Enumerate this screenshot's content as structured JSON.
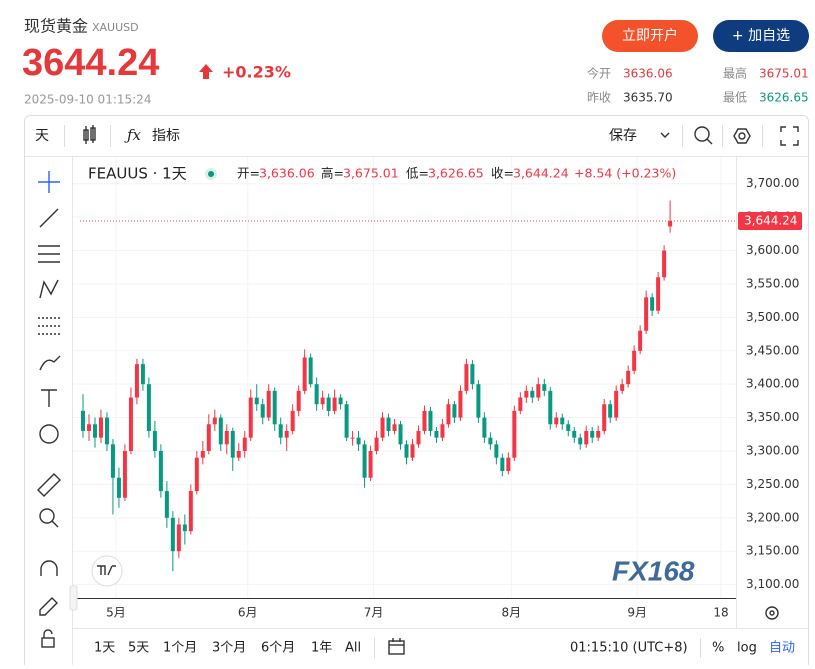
{
  "header": {
    "title": "现货黄金",
    "symbol": "XAUUSD",
    "price": "3644.24",
    "change": "+0.23%",
    "time": "2025-09-10 01:15:24",
    "buttons": [
      "立即开户",
      "+ 加自选"
    ],
    "stats": [
      [
        "今开",
        "3636.06"
      ],
      [
        "最高",
        "3675.01"
      ],
      [
        "昨收",
        "3635.70"
      ],
      [
        "最低",
        "3626.65"
      ]
    ]
  },
  "toolbar": {
    "interval": "天",
    "indicators": "指标",
    "save": "保存"
  },
  "bottom_bar": {
    "ranges": [
      "1天",
      "5天",
      "1个月",
      "3个月",
      "6个月",
      "1年",
      "All"
    ],
    "clock": "01:15:10 (UTC+8)",
    "percent": "%",
    "log": "log",
    "auto": "自动"
  },
  "chart_data": {
    "type": "candlestick",
    "legend_symbol": "FEAUUS · 1天",
    "legend": [
      [
        "开=",
        "3,636.06"
      ],
      [
        "高=",
        "3,675.01"
      ],
      [
        "低=",
        "3,626.65"
      ],
      [
        "收=",
        "3,644.24"
      ]
    ],
    "legend_change": "+8.54 (+0.23%)",
    "watermark": "FX168",
    "up_color": "#f23645",
    "down_color": "#089981",
    "ylim": [
      3080,
      3740
    ],
    "yticks": [
      {
        "value": 3100,
        "label": "3,100.00"
      },
      {
        "value": 3150,
        "label": "3,150.00"
      },
      {
        "value": 3200,
        "label": "3,200.00"
      },
      {
        "value": 3250,
        "label": "3,250.00"
      },
      {
        "value": 3300,
        "label": "3,300.00"
      },
      {
        "value": 3350,
        "label": "3,350.00"
      },
      {
        "value": 3400,
        "label": "3,400.00"
      },
      {
        "value": 3450,
        "label": "3,450.00"
      },
      {
        "value": 3500,
        "label": "3,500.00"
      },
      {
        "value": 3550,
        "label": "3,550.00"
      },
      {
        "value": 3600,
        "label": "3,600.00"
      },
      {
        "value": 3650,
        "label": "3,650.00"
      },
      {
        "value": 3700,
        "label": "3,700.00"
      }
    ],
    "last_price": {
      "value": 3644.24,
      "label": "3,644.24"
    },
    "xlim": [
      -0.5,
      109
    ],
    "xticks": [
      {
        "value": 5.5,
        "label": "5月"
      },
      {
        "value": 27.5,
        "label": "6月"
      },
      {
        "value": 48.5,
        "label": "7月"
      },
      {
        "value": 71.5,
        "label": "8月"
      },
      {
        "value": 92.5,
        "label": "9月"
      },
      {
        "value": 106.5,
        "label": "18"
      }
    ],
    "ohlc": [
      [
        3360,
        3385,
        3320,
        3330
      ],
      [
        3330,
        3355,
        3315,
        3340
      ],
      [
        3340,
        3350,
        3305,
        3320
      ],
      [
        3320,
        3362,
        3312,
        3350
      ],
      [
        3350,
        3358,
        3300,
        3310
      ],
      [
        3310,
        3318,
        3205,
        3260
      ],
      [
        3260,
        3275,
        3215,
        3230
      ],
      [
        3230,
        3310,
        3225,
        3300
      ],
      [
        3300,
        3395,
        3295,
        3380
      ],
      [
        3380,
        3438,
        3370,
        3430
      ],
      [
        3430,
        3438,
        3390,
        3400
      ],
      [
        3400,
        3410,
        3320,
        3330
      ],
      [
        3330,
        3345,
        3290,
        3300
      ],
      [
        3300,
        3310,
        3230,
        3240
      ],
      [
        3240,
        3255,
        3185,
        3200
      ],
      [
        3200,
        3210,
        3120,
        3150
      ],
      [
        3150,
        3200,
        3140,
        3190
      ],
      [
        3190,
        3205,
        3160,
        3180
      ],
      [
        3180,
        3250,
        3175,
        3240
      ],
      [
        3240,
        3300,
        3235,
        3290
      ],
      [
        3290,
        3315,
        3280,
        3300
      ],
      [
        3300,
        3355,
        3295,
        3340
      ],
      [
        3340,
        3362,
        3330,
        3350
      ],
      [
        3350,
        3355,
        3300,
        3310
      ],
      [
        3310,
        3340,
        3295,
        3330
      ],
      [
        3330,
        3335,
        3270,
        3290
      ],
      [
        3290,
        3312,
        3285,
        3300
      ],
      [
        3300,
        3330,
        3290,
        3320
      ],
      [
        3320,
        3392,
        3315,
        3380
      ],
      [
        3380,
        3400,
        3360,
        3370
      ],
      [
        3370,
        3378,
        3340,
        3350
      ],
      [
        3350,
        3400,
        3345,
        3390
      ],
      [
        3390,
        3395,
        3330,
        3340
      ],
      [
        3340,
        3350,
        3310,
        3320
      ],
      [
        3320,
        3340,
        3300,
        3330
      ],
      [
        3330,
        3370,
        3325,
        3360
      ],
      [
        3360,
        3398,
        3352,
        3390
      ],
      [
        3390,
        3452,
        3385,
        3440
      ],
      [
        3440,
        3446,
        3395,
        3400
      ],
      [
        3400,
        3410,
        3360,
        3370
      ],
      [
        3370,
        3390,
        3362,
        3380
      ],
      [
        3380,
        3386,
        3352,
        3360
      ],
      [
        3360,
        3392,
        3355,
        3380
      ],
      [
        3380,
        3385,
        3362,
        3370
      ],
      [
        3370,
        3375,
        3315,
        3320
      ],
      [
        3320,
        3330,
        3308,
        3320
      ],
      [
        3320,
        3330,
        3300,
        3310
      ],
      [
        3310,
        3316,
        3245,
        3260
      ],
      [
        3260,
        3308,
        3255,
        3300
      ],
      [
        3300,
        3330,
        3295,
        3320
      ],
      [
        3320,
        3358,
        3315,
        3350
      ],
      [
        3350,
        3356,
        3322,
        3330
      ],
      [
        3330,
        3348,
        3325,
        3340
      ],
      [
        3340,
        3345,
        3302,
        3310
      ],
      [
        3310,
        3316,
        3280,
        3290
      ],
      [
        3290,
        3318,
        3285,
        3310
      ],
      [
        3310,
        3338,
        3305,
        3330
      ],
      [
        3330,
        3368,
        3325,
        3360
      ],
      [
        3360,
        3366,
        3322,
        3330
      ],
      [
        3330,
        3336,
        3312,
        3320
      ],
      [
        3320,
        3348,
        3315,
        3340
      ],
      [
        3340,
        3378,
        3335,
        3370
      ],
      [
        3370,
        3375,
        3342,
        3350
      ],
      [
        3350,
        3398,
        3345,
        3390
      ],
      [
        3390,
        3438,
        3385,
        3430
      ],
      [
        3430,
        3436,
        3392,
        3400
      ],
      [
        3400,
        3406,
        3342,
        3350
      ],
      [
        3350,
        3358,
        3312,
        3320
      ],
      [
        3320,
        3328,
        3302,
        3310
      ],
      [
        3310,
        3316,
        3280,
        3290
      ],
      [
        3290,
        3296,
        3262,
        3270
      ],
      [
        3270,
        3298,
        3265,
        3290
      ],
      [
        3290,
        3368,
        3285,
        3360
      ],
      [
        3360,
        3388,
        3355,
        3380
      ],
      [
        3380,
        3398,
        3372,
        3390
      ],
      [
        3390,
        3396,
        3372,
        3380
      ],
      [
        3380,
        3410,
        3375,
        3400
      ],
      [
        3400,
        3408,
        3382,
        3390
      ],
      [
        3390,
        3396,
        3332,
        3340
      ],
      [
        3340,
        3358,
        3335,
        3350
      ],
      [
        3350,
        3356,
        3332,
        3340
      ],
      [
        3340,
        3346,
        3322,
        3330
      ],
      [
        3330,
        3336,
        3312,
        3320
      ],
      [
        3320,
        3326,
        3302,
        3310
      ],
      [
        3310,
        3338,
        3305,
        3330
      ],
      [
        3330,
        3336,
        3312,
        3320
      ],
      [
        3320,
        3338,
        3315,
        3330
      ],
      [
        3330,
        3378,
        3325,
        3370
      ],
      [
        3370,
        3376,
        3342,
        3350
      ],
      [
        3350,
        3398,
        3345,
        3390
      ],
      [
        3390,
        3408,
        3385,
        3400
      ],
      [
        3400,
        3428,
        3395,
        3420
      ],
      [
        3420,
        3458,
        3415,
        3450
      ],
      [
        3450,
        3488,
        3445,
        3480
      ],
      [
        3480,
        3540,
        3475,
        3530
      ],
      [
        3530,
        3536,
        3502,
        3510
      ],
      [
        3510,
        3568,
        3505,
        3560
      ],
      [
        3560,
        3608,
        3555,
        3600
      ],
      [
        3636.06,
        3675.01,
        3626.65,
        3644.24
      ]
    ]
  }
}
